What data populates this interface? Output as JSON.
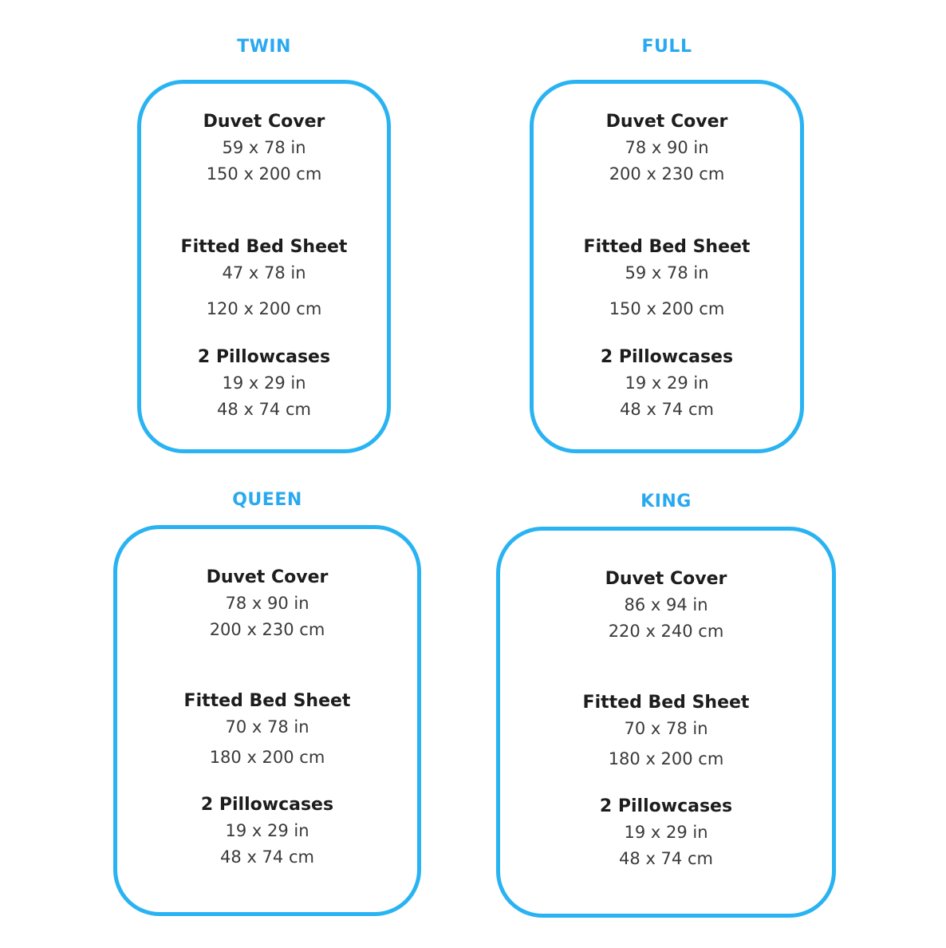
{
  "page": {
    "accent_color": "#29b3f2",
    "title_color": "#2aa9f0",
    "text_color": "#2e2e2e",
    "background": "#ffffff"
  },
  "sizes": [
    {
      "id": "twin",
      "title": "TWIN",
      "sections": [
        {
          "label": "Duvet Cover",
          "inches": "59 x 78 in",
          "cm": "150 x 200 cm"
        },
        {
          "label": "Fitted Bed Sheet",
          "inches": "47 x 78 in",
          "cm": "120 x 200 cm"
        },
        {
          "label": "2 Pillowcases",
          "inches": "19 x 29 in",
          "cm": "48 x 74 cm"
        }
      ]
    },
    {
      "id": "full",
      "title": "FULL",
      "sections": [
        {
          "label": "Duvet Cover",
          "inches": "78 x 90 in",
          "cm": "200 x 230 cm"
        },
        {
          "label": "Fitted Bed Sheet",
          "inches": "59 x 78 in",
          "cm": "150 x 200 cm"
        },
        {
          "label": "2 Pillowcases",
          "inches": "19 x 29 in",
          "cm": "48 x 74 cm"
        }
      ]
    },
    {
      "id": "queen",
      "title": "QUEEN",
      "sections": [
        {
          "label": "Duvet Cover",
          "inches": "78 x 90 in",
          "cm": "200 x 230 cm"
        },
        {
          "label": "Fitted Bed Sheet",
          "inches": "70 x 78 in",
          "cm": "180 x 200 cm"
        },
        {
          "label": "2 Pillowcases",
          "inches": "19 x 29 in",
          "cm": "48 x 74 cm"
        }
      ]
    },
    {
      "id": "king",
      "title": "KING",
      "sections": [
        {
          "label": "Duvet Cover",
          "inches": "86 x 94 in",
          "cm": "220 x 240 cm"
        },
        {
          "label": "Fitted Bed Sheet",
          "inches": "70 x 78 in",
          "cm": "180 x 200 cm"
        },
        {
          "label": "2 Pillowcases",
          "inches": "19 x 29 in",
          "cm": "48 x 74 cm"
        }
      ]
    }
  ]
}
